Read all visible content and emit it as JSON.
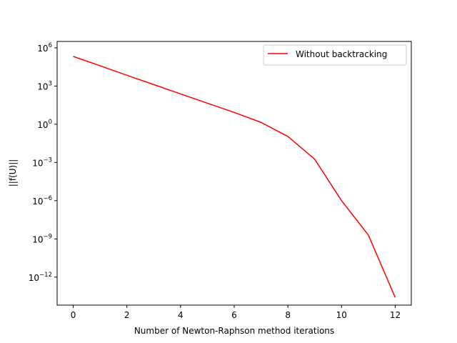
{
  "chart_data": {
    "type": "line",
    "title": "",
    "xlabel": "Number of Newton-Raphson method iterations",
    "ylabel": "||f(U)||",
    "xlim": [
      -0.6,
      12.6
    ],
    "ylim_log10": [
      -14.2,
      6.5
    ],
    "y_scale": "log",
    "x_ticks": [
      0,
      2,
      4,
      6,
      8,
      10,
      12
    ],
    "y_ticks": [
      {
        "exp": 6,
        "base": "10",
        "sup": "6"
      },
      {
        "exp": 3,
        "base": "10",
        "sup": "3"
      },
      {
        "exp": 0,
        "base": "10",
        "sup": "0"
      },
      {
        "exp": -3,
        "base": "10",
        "sup": "−3"
      },
      {
        "exp": -6,
        "base": "10",
        "sup": "−6"
      },
      {
        "exp": -9,
        "base": "10",
        "sup": "−9"
      },
      {
        "exp": -12,
        "base": "10",
        "sup": "−12"
      }
    ],
    "series": [
      {
        "name": "Without backtracking",
        "color": "#ff0000",
        "x": [
          0,
          1,
          2,
          3,
          4,
          5,
          6,
          7,
          8,
          9,
          10,
          11,
          12
        ],
        "y": [
          210000,
          39000,
          7000,
          1300,
          240,
          45,
          8.5,
          1.4,
          0.11,
          0.0018,
          1e-06,
          2e-09,
          2.5e-14
        ]
      }
    ],
    "grid": false,
    "legend_position": "upper-right"
  }
}
